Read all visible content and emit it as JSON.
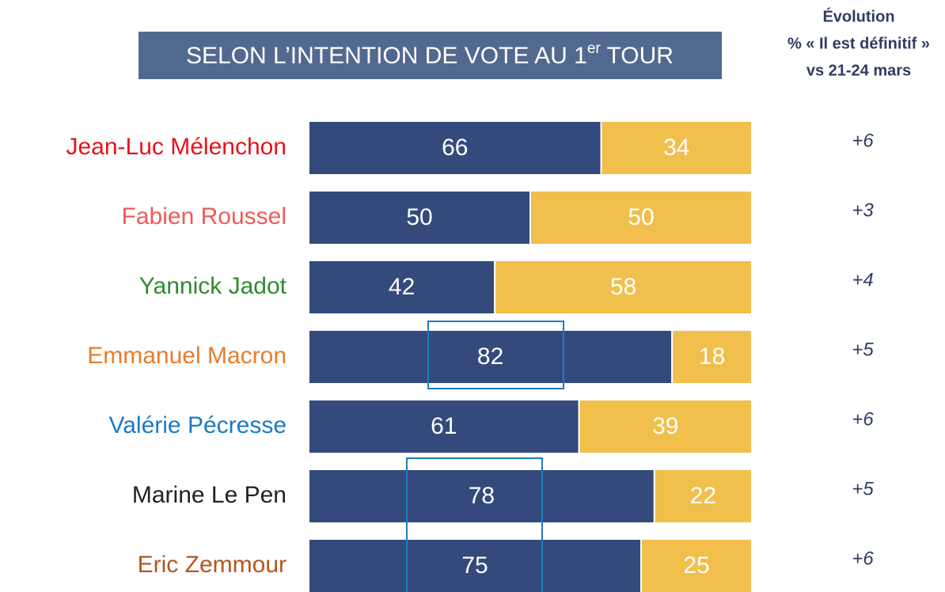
{
  "chart_data": {
    "type": "stacked_bar_horizontal",
    "title": [
      "SELON L’INTENTION DE VOTE AU 1",
      "er",
      " TOUR"
    ],
    "evolution_header": [
      "Évolution",
      "% « Il est définitif »",
      "vs 21-24 mars"
    ],
    "categories": [
      "Jean-Luc Mélenchon",
      "Fabien Roussel",
      "Yannick Jadot",
      "Emmanuel Macron",
      "Valérie Pécresse",
      "Marine Le Pen",
      "Eric Zemmour"
    ],
    "category_colors": [
      "#e8121b",
      "#f05a5a",
      "#2e8b2e",
      "#e87d2c",
      "#1a7bc4",
      "#222222",
      "#b5561e"
    ],
    "series": [
      {
        "color": "#344a7c",
        "values": [
          66,
          50,
          42,
          82,
          61,
          78,
          75
        ]
      },
      {
        "color": "#f0bf4c",
        "values": [
          34,
          50,
          58,
          18,
          39,
          22,
          25
        ]
      }
    ],
    "evolution": {
      "values": [
        6,
        3,
        4,
        5,
        6,
        5,
        6
      ],
      "value_labels": [
        "+6",
        "+3",
        "+4",
        "+5",
        "+6",
        "+5",
        "+6"
      ]
    },
    "xlim": [
      0,
      100
    ]
  }
}
